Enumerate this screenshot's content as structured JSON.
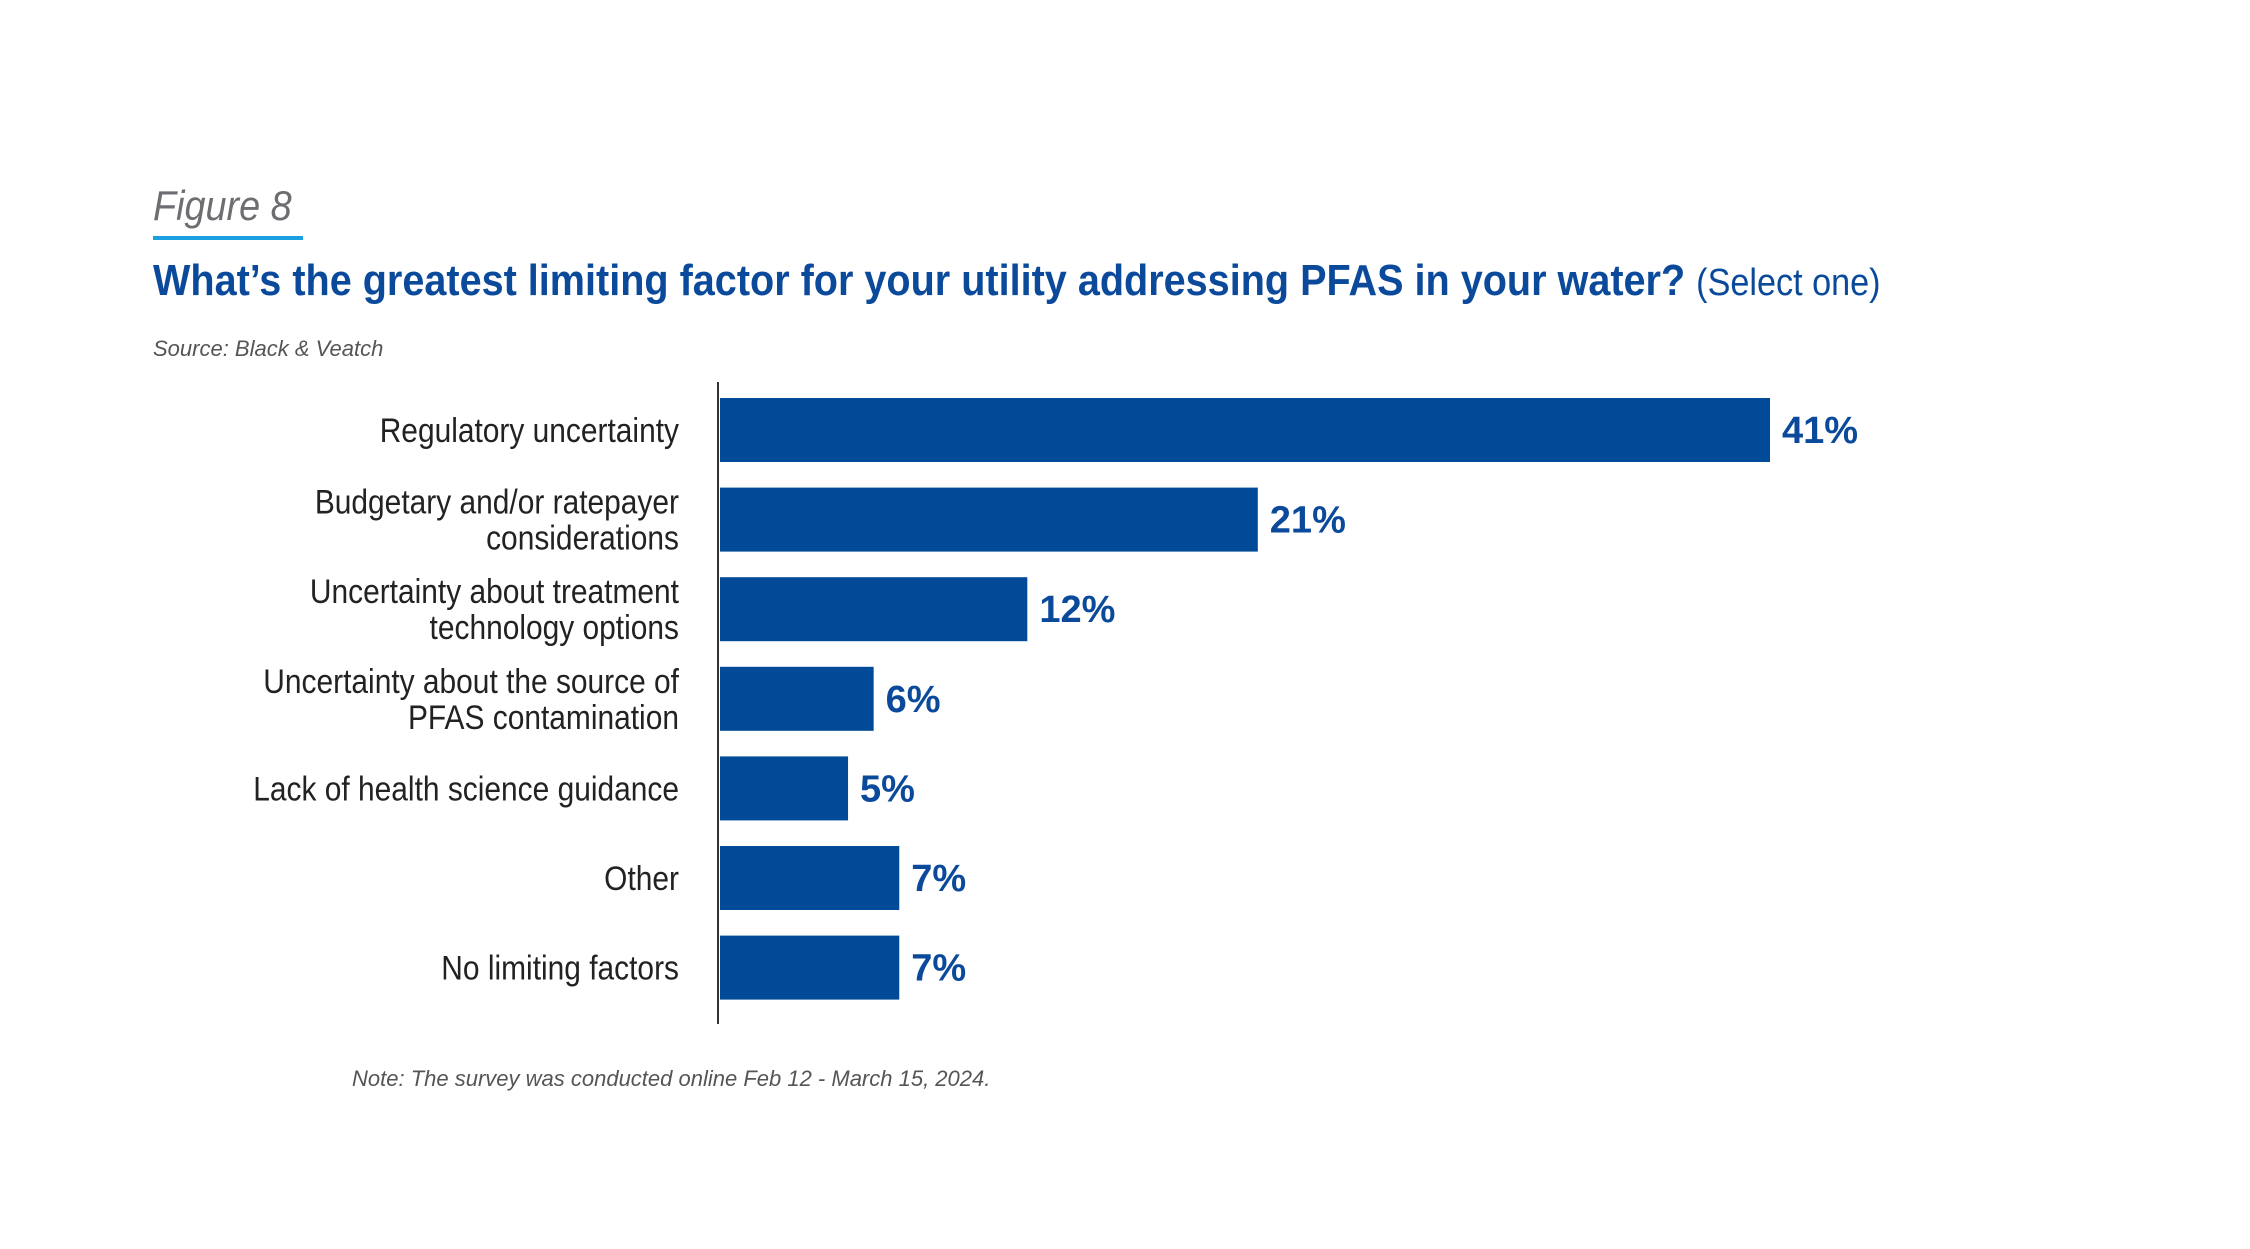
{
  "figure_label": "Figure 8",
  "source": "Source: Black & Veatch",
  "note": "Note: The survey was conducted online Feb 12 - March 15, 2024.",
  "colors": {
    "bar": "#004a98",
    "title": "#0b4a9b",
    "accent": "#1ba1e2"
  },
  "chart_data": {
    "type": "bar",
    "orientation": "horizontal",
    "title": "What’s the greatest limiting factor for your utility addressing PFAS in your water?",
    "subtitle": "(Select one)",
    "categories": [
      [
        "Regulatory uncertainty"
      ],
      [
        "Budgetary and/or ratepayer",
        "considerations"
      ],
      [
        "Uncertainty about treatment",
        "technology options"
      ],
      [
        "Uncertainty about the source of",
        "PFAS contamination"
      ],
      [
        "Lack of health science guidance"
      ],
      [
        "Other"
      ],
      [
        "No limiting factors"
      ]
    ],
    "values": [
      41,
      21,
      12,
      6,
      5,
      7,
      7
    ],
    "value_labels": [
      "41%",
      "21%",
      "12%",
      "6%",
      "5%",
      "7%",
      "7%"
    ],
    "xlabel": "",
    "ylabel": "",
    "xlim": [
      0,
      41
    ],
    "grid": false
  }
}
